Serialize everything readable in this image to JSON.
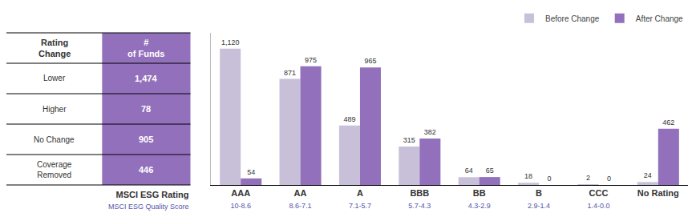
{
  "chart_data": [
    {
      "type": "table",
      "header": [
        "Rating\nChange",
        "#\nof Funds"
      ],
      "categories": [
        "Lower",
        "Higher",
        "No Change",
        "Coverage\nRemoved"
      ],
      "values": [
        1474,
        78,
        905,
        446
      ],
      "value_labels": [
        "1,474",
        "78",
        "905",
        "446"
      ],
      "color": "#9370bb"
    },
    {
      "type": "bar",
      "categories": [
        "AAA",
        "AA",
        "A",
        "BBB",
        "BB",
        "B",
        "CCC",
        "No Rating"
      ],
      "quality_scores": [
        "10-8.6",
        "8.6-7.1",
        "7.1-5.7",
        "5.7-4.3",
        "4.3-2.9",
        "2.9-1.4",
        "1.4-0.0",
        null
      ],
      "annotations": [
        "MSCI ESG Rating",
        "MSCI ESG Quality Score"
      ],
      "series": [
        {
          "name": "Before Change",
          "color": "#c8c0d8",
          "values": [
            1120,
            871,
            489,
            315,
            64,
            18,
            2,
            24
          ],
          "value_labels": [
            "1,120",
            "871",
            "489",
            "315",
            "64",
            "18",
            "2",
            "24"
          ]
        },
        {
          "name": "After Change",
          "color": "#9370bb",
          "values": [
            54,
            975,
            965,
            382,
            65,
            0,
            0,
            462
          ],
          "value_labels": [
            "54",
            "975",
            "965",
            "382",
            "65",
            "0",
            "0",
            "462"
          ]
        }
      ],
      "ylim": [
        0,
        1250
      ],
      "data_labels": true,
      "tick_labels": "x",
      "grid": false,
      "legend": "upper right"
    }
  ]
}
